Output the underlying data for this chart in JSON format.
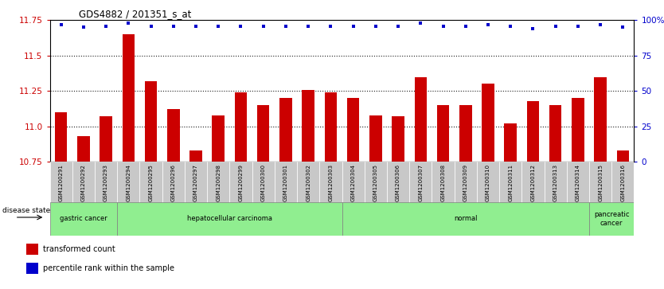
{
  "title": "GDS4882 / 201351_s_at",
  "samples": [
    "GSM1200291",
    "GSM1200292",
    "GSM1200293",
    "GSM1200294",
    "GSM1200295",
    "GSM1200296",
    "GSM1200297",
    "GSM1200298",
    "GSM1200299",
    "GSM1200300",
    "GSM1200301",
    "GSM1200302",
    "GSM1200303",
    "GSM1200304",
    "GSM1200305",
    "GSM1200306",
    "GSM1200307",
    "GSM1200308",
    "GSM1200309",
    "GSM1200310",
    "GSM1200311",
    "GSM1200312",
    "GSM1200313",
    "GSM1200314",
    "GSM1200315",
    "GSM1200316"
  ],
  "bar_values": [
    11.1,
    10.93,
    11.07,
    11.65,
    11.32,
    11.12,
    10.83,
    11.08,
    11.24,
    11.15,
    11.2,
    11.26,
    11.24,
    11.2,
    11.08,
    11.07,
    11.35,
    11.15,
    11.15,
    11.3,
    11.02,
    11.18,
    11.15,
    11.2,
    11.35,
    10.83
  ],
  "percentile_values": [
    97,
    95,
    96,
    98,
    96,
    96,
    96,
    96,
    96,
    96,
    96,
    96,
    96,
    96,
    96,
    96,
    98,
    96,
    96,
    97,
    96,
    94,
    96,
    96,
    97,
    95
  ],
  "disease_groups": [
    {
      "label": "gastric cancer",
      "start": 0,
      "end": 2
    },
    {
      "label": "hepatocellular carcinoma",
      "start": 3,
      "end": 12
    },
    {
      "label": "normal",
      "start": 13,
      "end": 23
    },
    {
      "label": "pancreatic\ncancer",
      "start": 24,
      "end": 25
    }
  ],
  "bar_color": "#CC0000",
  "percentile_color": "#0000CC",
  "ylim_left": [
    10.75,
    11.75
  ],
  "ylim_right": [
    0,
    100
  ],
  "yticks_left": [
    10.75,
    11.0,
    11.25,
    11.5,
    11.75
  ],
  "yticks_right": [
    0,
    25,
    50,
    75,
    100
  ],
  "bg_color": "#ffffff",
  "tick_label_color_left": "#CC0000",
  "tick_label_color_right": "#0000CC",
  "bar_width": 0.55,
  "green_color": "#90EE90",
  "gray_tick_bg": "#C8C8C8"
}
